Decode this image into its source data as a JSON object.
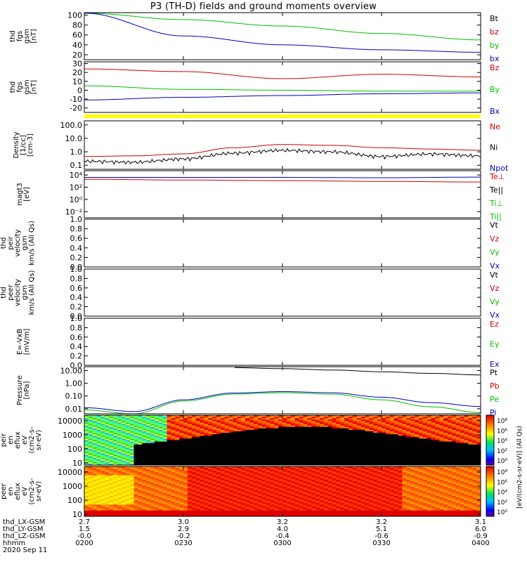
{
  "title": "P3 (TH-D) fields and ground moments overview",
  "date_label": "2020 Sep 11",
  "orbit_rows": [
    {
      "label": "thd_LX-GSM",
      "values": [
        "2.7",
        "3.0",
        "3.2",
        "3.2",
        "3.1"
      ]
    },
    {
      "label": "thd_LY-GSM",
      "values": [
        "1.5",
        "2.9",
        "4.0",
        "5.1",
        "6.0"
      ]
    },
    {
      "label": "thd_LZ-GSM",
      "values": [
        "-0.0",
        "-0.2",
        "-0.4",
        "-0.6",
        "-0.9"
      ]
    },
    {
      "label": "hhmm",
      "values": [
        "0200",
        "0230",
        "0300",
        "0330",
        "0400"
      ]
    }
  ],
  "colorbar_label": "[eV/(cm2-s-sr-eV)] (All Qs)",
  "colorbar_ticks": [
    "10⁸",
    "10⁶",
    "10⁴",
    "10²",
    "10⁰"
  ],
  "colors": {
    "black": "#000000",
    "red": "#d00000",
    "green": "#00c000",
    "blue": "#0000c0",
    "yellow": "#ffff00"
  },
  "chart_data": [
    {
      "type": "line",
      "name": "panel-fgs-mag",
      "ylabel": [
        "thd",
        "fgs",
        "gsm",
        "[nT]"
      ],
      "ylim": [
        10,
        105
      ],
      "yticks": [
        "100",
        "80",
        "60",
        "40",
        "20"
      ],
      "ytick_values": [
        100,
        80,
        60,
        40,
        20
      ],
      "x": [
        0,
        0.5,
        1,
        1.5,
        2
      ],
      "legend": [
        {
          "text": "Bt",
          "color": "black"
        },
        {
          "text": "bz",
          "color": "red"
        },
        {
          "text": "by",
          "color": "green"
        },
        {
          "text": "bx",
          "color": "blue"
        }
      ],
      "series": [
        {
          "color": "green",
          "values": [
            104,
            91,
            78,
            63,
            50
          ]
        },
        {
          "color": "blue",
          "values": [
            104,
            58,
            40,
            30,
            25
          ]
        }
      ]
    },
    {
      "type": "line",
      "name": "panel-fgs-gsm",
      "ylabel": [
        "thd",
        "fgs",
        "gsm",
        "[nT]"
      ],
      "ylim": [
        -25,
        32
      ],
      "yticks": [
        "30",
        "20",
        "10",
        "0",
        "-10",
        "-20"
      ],
      "ytick_values": [
        30,
        20,
        10,
        0,
        -10,
        -20
      ],
      "x": [
        0,
        0.5,
        1,
        1.5,
        2
      ],
      "legend": [
        {
          "text": "Bz",
          "color": "red"
        },
        {
          "text": "By",
          "color": "green"
        },
        {
          "text": "Bx",
          "color": "blue"
        }
      ],
      "series": [
        {
          "color": "red",
          "values": [
            24,
            21,
            13,
            18,
            15
          ]
        },
        {
          "color": "green",
          "values": [
            5,
            1,
            0,
            -1,
            -1
          ]
        },
        {
          "color": "blue",
          "values": [
            -11,
            -8,
            -6,
            -4,
            -3
          ]
        }
      ]
    },
    {
      "type": "line",
      "name": "panel-density",
      "ylabel": [
        "Density",
        "[1/cc]",
        "[cm-3]"
      ],
      "log": true,
      "ylim": [
        0.05,
        200
      ],
      "yticks": [
        "100.0",
        "10.0",
        "1.0",
        "0.1"
      ],
      "ytick_values": [
        100,
        10,
        1,
        0.1
      ],
      "x": [
        0,
        0.25,
        0.5,
        0.75,
        1,
        1.25,
        1.5,
        1.75,
        2
      ],
      "legend": [
        {
          "text": "Ne",
          "color": "red"
        },
        {
          "text": "Ni",
          "color": "black"
        },
        {
          "text": "Npot",
          "color": "blue"
        }
      ],
      "series": [
        {
          "color": "red",
          "values": [
            0.45,
            0.5,
            0.7,
            2.0,
            3.5,
            3.0,
            2.0,
            1.6,
            1.3
          ]
        },
        {
          "color": "black",
          "values": [
            0.2,
            0.17,
            0.3,
            0.8,
            1.3,
            1.0,
            0.45,
            0.7,
            0.5
          ]
        }
      ]
    },
    {
      "type": "line",
      "name": "panel-temperature",
      "ylabel": [
        "magt3",
        "[eV]"
      ],
      "log": true,
      "ylim": [
        0.001,
        50000
      ],
      "yticks": [
        "10⁴",
        "10²",
        "10⁰",
        "10⁻²"
      ],
      "ytick_values": [
        10000,
        100,
        1,
        0.01
      ],
      "x": [
        0,
        0.5,
        1,
        1.5,
        2
      ],
      "legend": [
        {
          "text": "Te⊥",
          "color": "red"
        },
        {
          "text": "Te||",
          "color": "black"
        },
        {
          "text": "Ti⊥",
          "color": "green"
        },
        {
          "text": "Ti||",
          "color": "green"
        }
      ],
      "series": [
        {
          "color": "red",
          "values": [
            2000,
            1500,
            1200,
            900,
            700
          ]
        },
        {
          "color": "blue",
          "values": [
            4000,
            4000,
            4000,
            3500,
            4500
          ]
        }
      ]
    },
    {
      "type": "line",
      "name": "panel-ion-velocity",
      "ylabel": [
        "thd",
        "peir",
        "velocity",
        "gsm",
        "km/s (All Qs)"
      ],
      "ylim": [
        0,
        1
      ],
      "yticks": [
        "1.0",
        "0.8",
        "0.6",
        "0.4",
        "0.2",
        "0.0"
      ],
      "ytick_values": [
        1,
        0.8,
        0.6,
        0.4,
        0.2,
        0
      ],
      "legend": [
        {
          "text": "Vt",
          "color": "black"
        },
        {
          "text": "Vz",
          "color": "red"
        },
        {
          "text": "Vy",
          "color": "green"
        },
        {
          "text": "Vx",
          "color": "blue"
        }
      ],
      "series": []
    },
    {
      "type": "line",
      "name": "panel-electron-velocity",
      "ylabel": [
        "thd",
        "peer",
        "velocity",
        "gsm",
        "km/s (All Qs)"
      ],
      "ylim": [
        0,
        1
      ],
      "yticks": [
        "1.0",
        "0.8",
        "0.6",
        "0.4",
        "0.2",
        "0.0"
      ],
      "ytick_values": [
        1,
        0.8,
        0.6,
        0.4,
        0.2,
        0
      ],
      "legend": [
        {
          "text": "Vt",
          "color": "black"
        },
        {
          "text": "Vz",
          "color": "red"
        },
        {
          "text": "Vy",
          "color": "green"
        },
        {
          "text": "Vx",
          "color": "blue"
        }
      ],
      "series": []
    },
    {
      "type": "line",
      "name": "panel-efield",
      "ylabel": [
        "E=-VxB",
        "[mV/m]"
      ],
      "ylim": [
        0,
        1
      ],
      "yticks": [
        "1.0",
        "0.8",
        "0.6",
        "0.4",
        "0.2",
        "0.0"
      ],
      "ytick_values": [
        1,
        0.8,
        0.6,
        0.4,
        0.2,
        0
      ],
      "legend": [
        {
          "text": "Ez",
          "color": "red"
        },
        {
          "text": "Ey",
          "color": "green"
        },
        {
          "text": "Ex",
          "color": "blue"
        }
      ],
      "series": []
    },
    {
      "type": "line",
      "name": "panel-pressure",
      "ylabel": [
        "Pressure",
        "[nPa]"
      ],
      "log": true,
      "ylim": [
        0.004,
        20
      ],
      "yticks": [
        "10.00",
        "1.00",
        "0.10",
        "0.01"
      ],
      "ytick_values": [
        10,
        1,
        0.1,
        0.01
      ],
      "x": [
        0,
        0.25,
        0.5,
        0.75,
        1,
        1.25,
        1.5,
        1.75,
        2
      ],
      "legend": [
        {
          "text": "Pt",
          "color": "black"
        },
        {
          "text": "Pb",
          "color": "red"
        },
        {
          "text": "Pe",
          "color": "green"
        },
        {
          "text": "Pi",
          "color": "blue"
        }
      ],
      "series": [
        {
          "color": "blue",
          "values": [
            0.012,
            0.006,
            0.05,
            0.17,
            0.22,
            0.18,
            0.08,
            0.03,
            0.015
          ]
        },
        {
          "color": "green",
          "values": [
            0.008,
            0.004,
            0.04,
            0.14,
            0.18,
            0.14,
            0.05,
            0.014,
            0.005
          ]
        },
        {
          "color": "black",
          "values": [
            null,
            null,
            null,
            17,
            14,
            11,
            8,
            6,
            4.5
          ]
        }
      ]
    },
    {
      "type": "heatmap",
      "name": "panel-ion-spectrogram",
      "ylabel": [
        "thd",
        "peir",
        "en",
        "eflux",
        "eV",
        "(cm2-s-",
        "sr-eV)"
      ],
      "log": true,
      "ylim": [
        7,
        25000
      ],
      "yticks": [
        "10000",
        "1000",
        "100",
        "10"
      ],
      "ytick_values": [
        10000,
        1000,
        100,
        10
      ]
    },
    {
      "type": "heatmap",
      "name": "panel-electron-spectrogram",
      "ylabel": [
        "thd",
        "peer",
        "en",
        "eflux",
        "eV",
        "(cm2-s-",
        "sr-eV)"
      ],
      "log": true,
      "ylim": [
        7,
        25000
      ],
      "yticks": [
        "10000",
        "1000",
        "100",
        "10"
      ],
      "ytick_values": [
        10000,
        1000,
        100,
        10
      ]
    }
  ]
}
